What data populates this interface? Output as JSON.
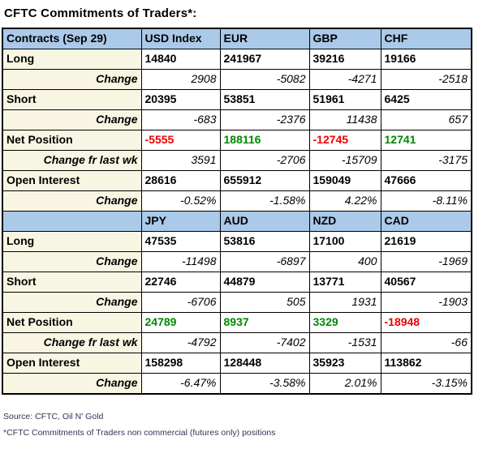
{
  "title": "CFTC Commitments of Traders*:",
  "colors": {
    "header_bg": "#abc9e9",
    "label_bg": "#f8f6e3",
    "positive": "#008800",
    "negative": "#ee0000",
    "footer_text": "#333355"
  },
  "chart_data": {
    "type": "table",
    "title": "CFTC Commitments of Traders*:",
    "sections": [
      {
        "header": [
          "Contracts (Sep 29)",
          "USD Index",
          "EUR",
          "GBP",
          "CHF"
        ],
        "rows": [
          {
            "label": "Long",
            "kind": "value",
            "values": [
              "14840",
              "241967",
              "39216",
              "19166"
            ]
          },
          {
            "label": "Change",
            "kind": "change",
            "values": [
              "2908",
              "-5082",
              "-4271",
              "-2518"
            ]
          },
          {
            "label": "Short",
            "kind": "value",
            "values": [
              "20395",
              "53851",
              "51961",
              "6425"
            ]
          },
          {
            "label": "Change",
            "kind": "change",
            "values": [
              "-683",
              "-2376",
              "11438",
              "657"
            ]
          },
          {
            "label": "Net Position",
            "kind": "net",
            "values": [
              "-5555",
              "188116",
              "-12745",
              "12741"
            ]
          },
          {
            "label": "Change fr last wk",
            "kind": "change",
            "values": [
              "3591",
              "-2706",
              "-15709",
              "-3175"
            ]
          },
          {
            "label": "Open Interest",
            "kind": "value",
            "values": [
              "28616",
              "655912",
              "159049",
              "47666"
            ]
          },
          {
            "label": "Change",
            "kind": "change",
            "values": [
              "-0.52%",
              "-1.58%",
              "4.22%",
              "-8.11%"
            ]
          }
        ]
      },
      {
        "header": [
          "",
          "JPY",
          "AUD",
          "NZD",
          "CAD"
        ],
        "rows": [
          {
            "label": "Long",
            "kind": "value",
            "values": [
              "47535",
              "53816",
              "17100",
              "21619"
            ]
          },
          {
            "label": "Change",
            "kind": "change",
            "values": [
              "-11498",
              "-6897",
              "400",
              "-1969"
            ]
          },
          {
            "label": "Short",
            "kind": "value",
            "values": [
              "22746",
              "44879",
              "13771",
              "40567"
            ]
          },
          {
            "label": "Change",
            "kind": "change",
            "values": [
              "-6706",
              "505",
              "1931",
              "-1903"
            ]
          },
          {
            "label": "Net Position",
            "kind": "net",
            "values": [
              "24789",
              "8937",
              "3329",
              "-18948"
            ]
          },
          {
            "label": "Change fr last wk",
            "kind": "change",
            "values": [
              "-4792",
              "-7402",
              "-1531",
              "-66"
            ]
          },
          {
            "label": "Open Interest",
            "kind": "value",
            "values": [
              "158298",
              "128448",
              "35923",
              "113862"
            ]
          },
          {
            "label": "Change",
            "kind": "change",
            "values": [
              "-6.47%",
              "-3.58%",
              "2.01%",
              "-3.15%"
            ]
          }
        ]
      }
    ]
  },
  "footer": {
    "source": "Source: CFTC, Oil N' Gold",
    "note": "*CFTC Commitments of Traders non commercial (futures only) positions"
  }
}
